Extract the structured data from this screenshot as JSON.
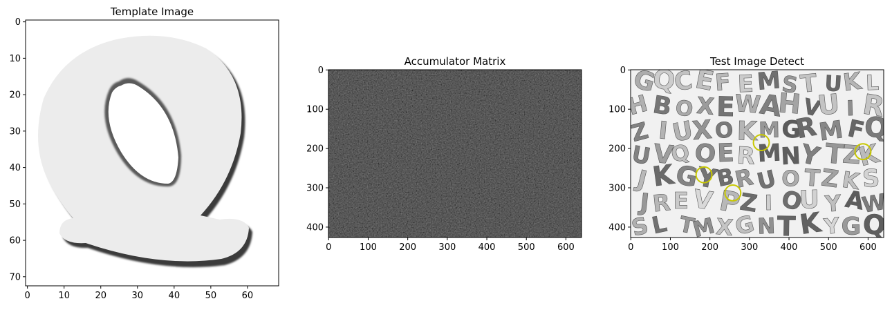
{
  "chart_data": [
    {
      "type": "heatmap",
      "title": "Template Image",
      "xlim": [
        -0.5,
        68.5
      ],
      "ylim": [
        72.5,
        -0.5
      ],
      "xticks": [
        0,
        10,
        20,
        30,
        40,
        50,
        60
      ],
      "yticks": [
        0,
        10,
        20,
        30,
        40,
        50,
        60,
        70
      ],
      "xtick_labels": [
        "0",
        "10",
        "20",
        "30",
        "40",
        "50",
        "60"
      ],
      "ytick_labels": [
        "0",
        "10",
        "20",
        "30",
        "40",
        "50",
        "60",
        "70"
      ],
      "colormap": "gray",
      "content": "grayscale letter Q template"
    },
    {
      "type": "heatmap",
      "title": "Accumulator Matrix",
      "xlim": [
        -0.5,
        639.5
      ],
      "ylim": [
        426.5,
        -0.5
      ],
      "xticks": [
        0,
        100,
        200,
        300,
        400,
        500,
        600
      ],
      "yticks": [
        0,
        100,
        200,
        300,
        400
      ],
      "xtick_labels": [
        "0",
        "100",
        "200",
        "300",
        "400",
        "500",
        "600"
      ],
      "ytick_labels": [
        "0",
        "100",
        "200",
        "300",
        "400"
      ],
      "colormap": "gray",
      "content": "dark accumulator noise texture"
    },
    {
      "type": "heatmap",
      "title": "Test Image Detect",
      "xlim": [
        -0.5,
        639.5
      ],
      "ylim": [
        426.5,
        -0.5
      ],
      "xticks": [
        0,
        100,
        200,
        300,
        400,
        500,
        600
      ],
      "yticks": [
        0,
        100,
        200,
        300,
        400
      ],
      "xtick_labels": [
        "0",
        "100",
        "200",
        "300",
        "400",
        "500",
        "600"
      ],
      "ytick_labels": [
        "0",
        "100",
        "200",
        "300",
        "400"
      ],
      "colormap": "gray",
      "content": "grayscale photo of scattered alphabet letters",
      "detections": [
        {
          "x": 330,
          "y": 185,
          "r": 20
        },
        {
          "x": 587,
          "y": 208,
          "r": 20
        },
        {
          "x": 185,
          "y": 267,
          "r": 20
        },
        {
          "x": 258,
          "y": 313,
          "r": 20
        }
      ],
      "detection_color": "#c8c800"
    }
  ],
  "letters": [
    "G",
    "Q",
    "C",
    "E",
    "F",
    "E",
    "M",
    "S",
    "T",
    "U",
    "K",
    "L",
    "H",
    "B",
    "O",
    "X",
    "E",
    "W",
    "A",
    "H",
    "V",
    "U",
    "I",
    "R",
    "Z",
    "I",
    "U",
    "X",
    "O",
    "K",
    "M",
    "G",
    "R",
    "M",
    "F",
    "Q",
    "U",
    "V",
    "Q",
    "O",
    "E",
    "R",
    "M",
    "N",
    "Y",
    "T",
    "Z",
    "K",
    "J",
    "K",
    "G",
    "Y",
    "B",
    "R",
    "U",
    "O",
    "T",
    "Z",
    "K",
    "S",
    "J",
    "R",
    "E",
    "V",
    "P",
    "Z",
    "I",
    "O",
    "U",
    "Y",
    "A",
    "W",
    "S",
    "L",
    "T",
    "M",
    "X",
    "G",
    "N",
    "T",
    "K",
    "Y"
  ]
}
